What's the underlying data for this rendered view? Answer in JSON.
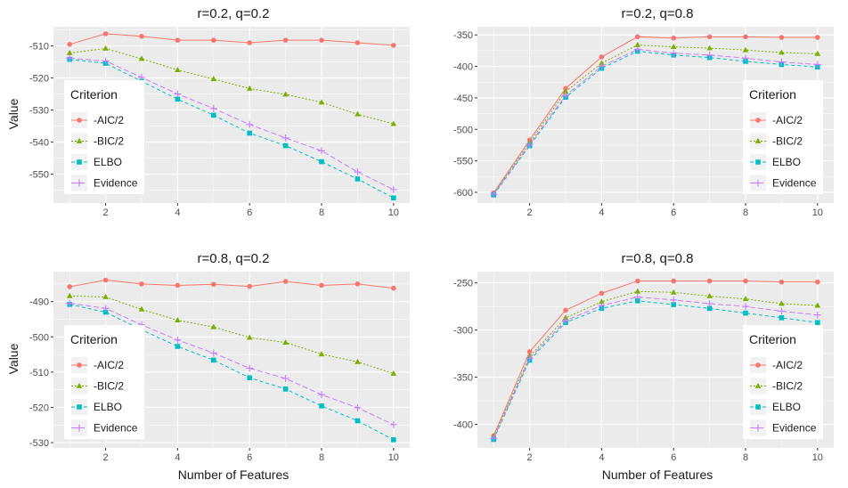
{
  "figure": {
    "xlabel": "Number of Features",
    "ylabel": "Value"
  },
  "legend": {
    "title": "Criterion",
    "entries": [
      "-AIC/2",
      "-BIC/2",
      "ELBO",
      "Evidence"
    ]
  },
  "colors": {
    "aic": "#F8766D",
    "bic": "#7CAE00",
    "elbo": "#00BFC4",
    "evidence": "#C77CFF",
    "panel_bg": "#EBEBEB",
    "grid": "#FFFFFF"
  },
  "chart_data": [
    {
      "type": "line",
      "title": "r=0.2, q=0.2",
      "legend_position": "bottom-left",
      "x": [
        1,
        2,
        3,
        4,
        5,
        6,
        7,
        8,
        9,
        10
      ],
      "xticks": [
        2,
        4,
        6,
        8,
        10
      ],
      "xlim": [
        0.55,
        10.45
      ],
      "ylim": [
        -559,
        -504
      ],
      "yticks": [
        -510,
        -520,
        -530,
        -540,
        -550
      ],
      "series": [
        {
          "name": "-AIC/2",
          "values": [
            -509.5,
            -506.2,
            -507.0,
            -508.2,
            -508.2,
            -509.0,
            -508.2,
            -508.2,
            -509.0,
            -509.8
          ]
        },
        {
          "name": "-BIC/2",
          "values": [
            -512.2,
            -510.8,
            -514.0,
            -517.5,
            -520.3,
            -523.3,
            -525.1,
            -527.6,
            -531.3,
            -534.3
          ]
        },
        {
          "name": "ELBO",
          "values": [
            -514.2,
            -515.4,
            -521.0,
            -526.6,
            -531.6,
            -537.2,
            -541.1,
            -546.1,
            -551.5,
            -557.4
          ]
        },
        {
          "name": "Evidence",
          "values": [
            -513.8,
            -514.7,
            -519.8,
            -525.0,
            -529.5,
            -534.5,
            -538.7,
            -542.7,
            -549.3,
            -554.8
          ]
        }
      ]
    },
    {
      "type": "line",
      "title": "r=0.2, q=0.8",
      "legend_position": "bottom-right",
      "x": [
        1,
        2,
        3,
        4,
        5,
        6,
        7,
        8,
        9,
        10
      ],
      "xticks": [
        2,
        4,
        6,
        8,
        10
      ],
      "xlim": [
        0.55,
        10.45
      ],
      "ylim": [
        -617,
        -337
      ],
      "yticks": [
        -350,
        -400,
        -450,
        -500,
        -550,
        -600
      ],
      "series": [
        {
          "name": "-AIC/2",
          "values": [
            -601,
            -517,
            -435,
            -385,
            -353,
            -355,
            -353,
            -353,
            -354,
            -354
          ]
        },
        {
          "name": "-BIC/2",
          "values": [
            -602,
            -521,
            -440,
            -395,
            -366,
            -369,
            -371,
            -374,
            -378,
            -380
          ]
        },
        {
          "name": "ELBO",
          "values": [
            -604,
            -526,
            -449,
            -403,
            -376,
            -382,
            -386,
            -392,
            -397,
            -401
          ]
        },
        {
          "name": "Evidence",
          "values": [
            -603,
            -524,
            -446,
            -400,
            -373,
            -379,
            -382,
            -387,
            -393,
            -397
          ]
        }
      ]
    },
    {
      "type": "line",
      "title": "r=0.8, q=0.2",
      "legend_position": "bottom-left",
      "x": [
        1,
        2,
        3,
        4,
        5,
        6,
        7,
        8,
        9,
        10
      ],
      "xticks": [
        2,
        4,
        6,
        8,
        10
      ],
      "xlim": [
        0.55,
        10.45
      ],
      "ylim": [
        -531.5,
        -481.5
      ],
      "yticks": [
        -490,
        -500,
        -510,
        -520,
        -530
      ],
      "series": [
        {
          "name": "-AIC/2",
          "values": [
            -485.8,
            -483.9,
            -485.0,
            -485.4,
            -485.1,
            -485.7,
            -484.3,
            -485.4,
            -485.0,
            -486.2
          ]
        },
        {
          "name": "-BIC/2",
          "values": [
            -488.4,
            -488.7,
            -492.2,
            -495.3,
            -497.2,
            -500.2,
            -501.6,
            -504.9,
            -507.1,
            -510.4
          ]
        },
        {
          "name": "ELBO",
          "values": [
            -490.8,
            -493.0,
            -498.0,
            -502.7,
            -506.6,
            -511.6,
            -514.8,
            -519.6,
            -523.8,
            -529.2
          ]
        },
        {
          "name": "Evidence",
          "values": [
            -490.5,
            -491.9,
            -496.6,
            -500.9,
            -504.6,
            -508.9,
            -511.8,
            -516.4,
            -520.1,
            -524.9
          ]
        }
      ]
    },
    {
      "type": "line",
      "title": "r=0.8, q=0.8",
      "legend_position": "bottom-right",
      "x": [
        1,
        2,
        3,
        4,
        5,
        6,
        7,
        8,
        9,
        10
      ],
      "xticks": [
        2,
        4,
        6,
        8,
        10
      ],
      "xlim": [
        0.55,
        10.45
      ],
      "ylim": [
        -425,
        -238
      ],
      "yticks": [
        -250,
        -300,
        -350,
        -400
      ],
      "series": [
        {
          "name": "-AIC/2",
          "values": [
            -412,
            -323,
            -279,
            -261,
            -248,
            -248,
            -248,
            -248,
            -249,
            -249
          ]
        },
        {
          "name": "-BIC/2",
          "values": [
            -413,
            -328,
            -287,
            -270,
            -259,
            -260,
            -264,
            -267,
            -272,
            -274
          ]
        },
        {
          "name": "ELBO",
          "values": [
            -416,
            -332,
            -292,
            -277,
            -269,
            -273,
            -277,
            -282,
            -287,
            -292
          ]
        },
        {
          "name": "Evidence",
          "values": [
            -415,
            -330,
            -290,
            -274,
            -265,
            -268,
            -272,
            -275,
            -280,
            -284
          ]
        }
      ]
    }
  ]
}
